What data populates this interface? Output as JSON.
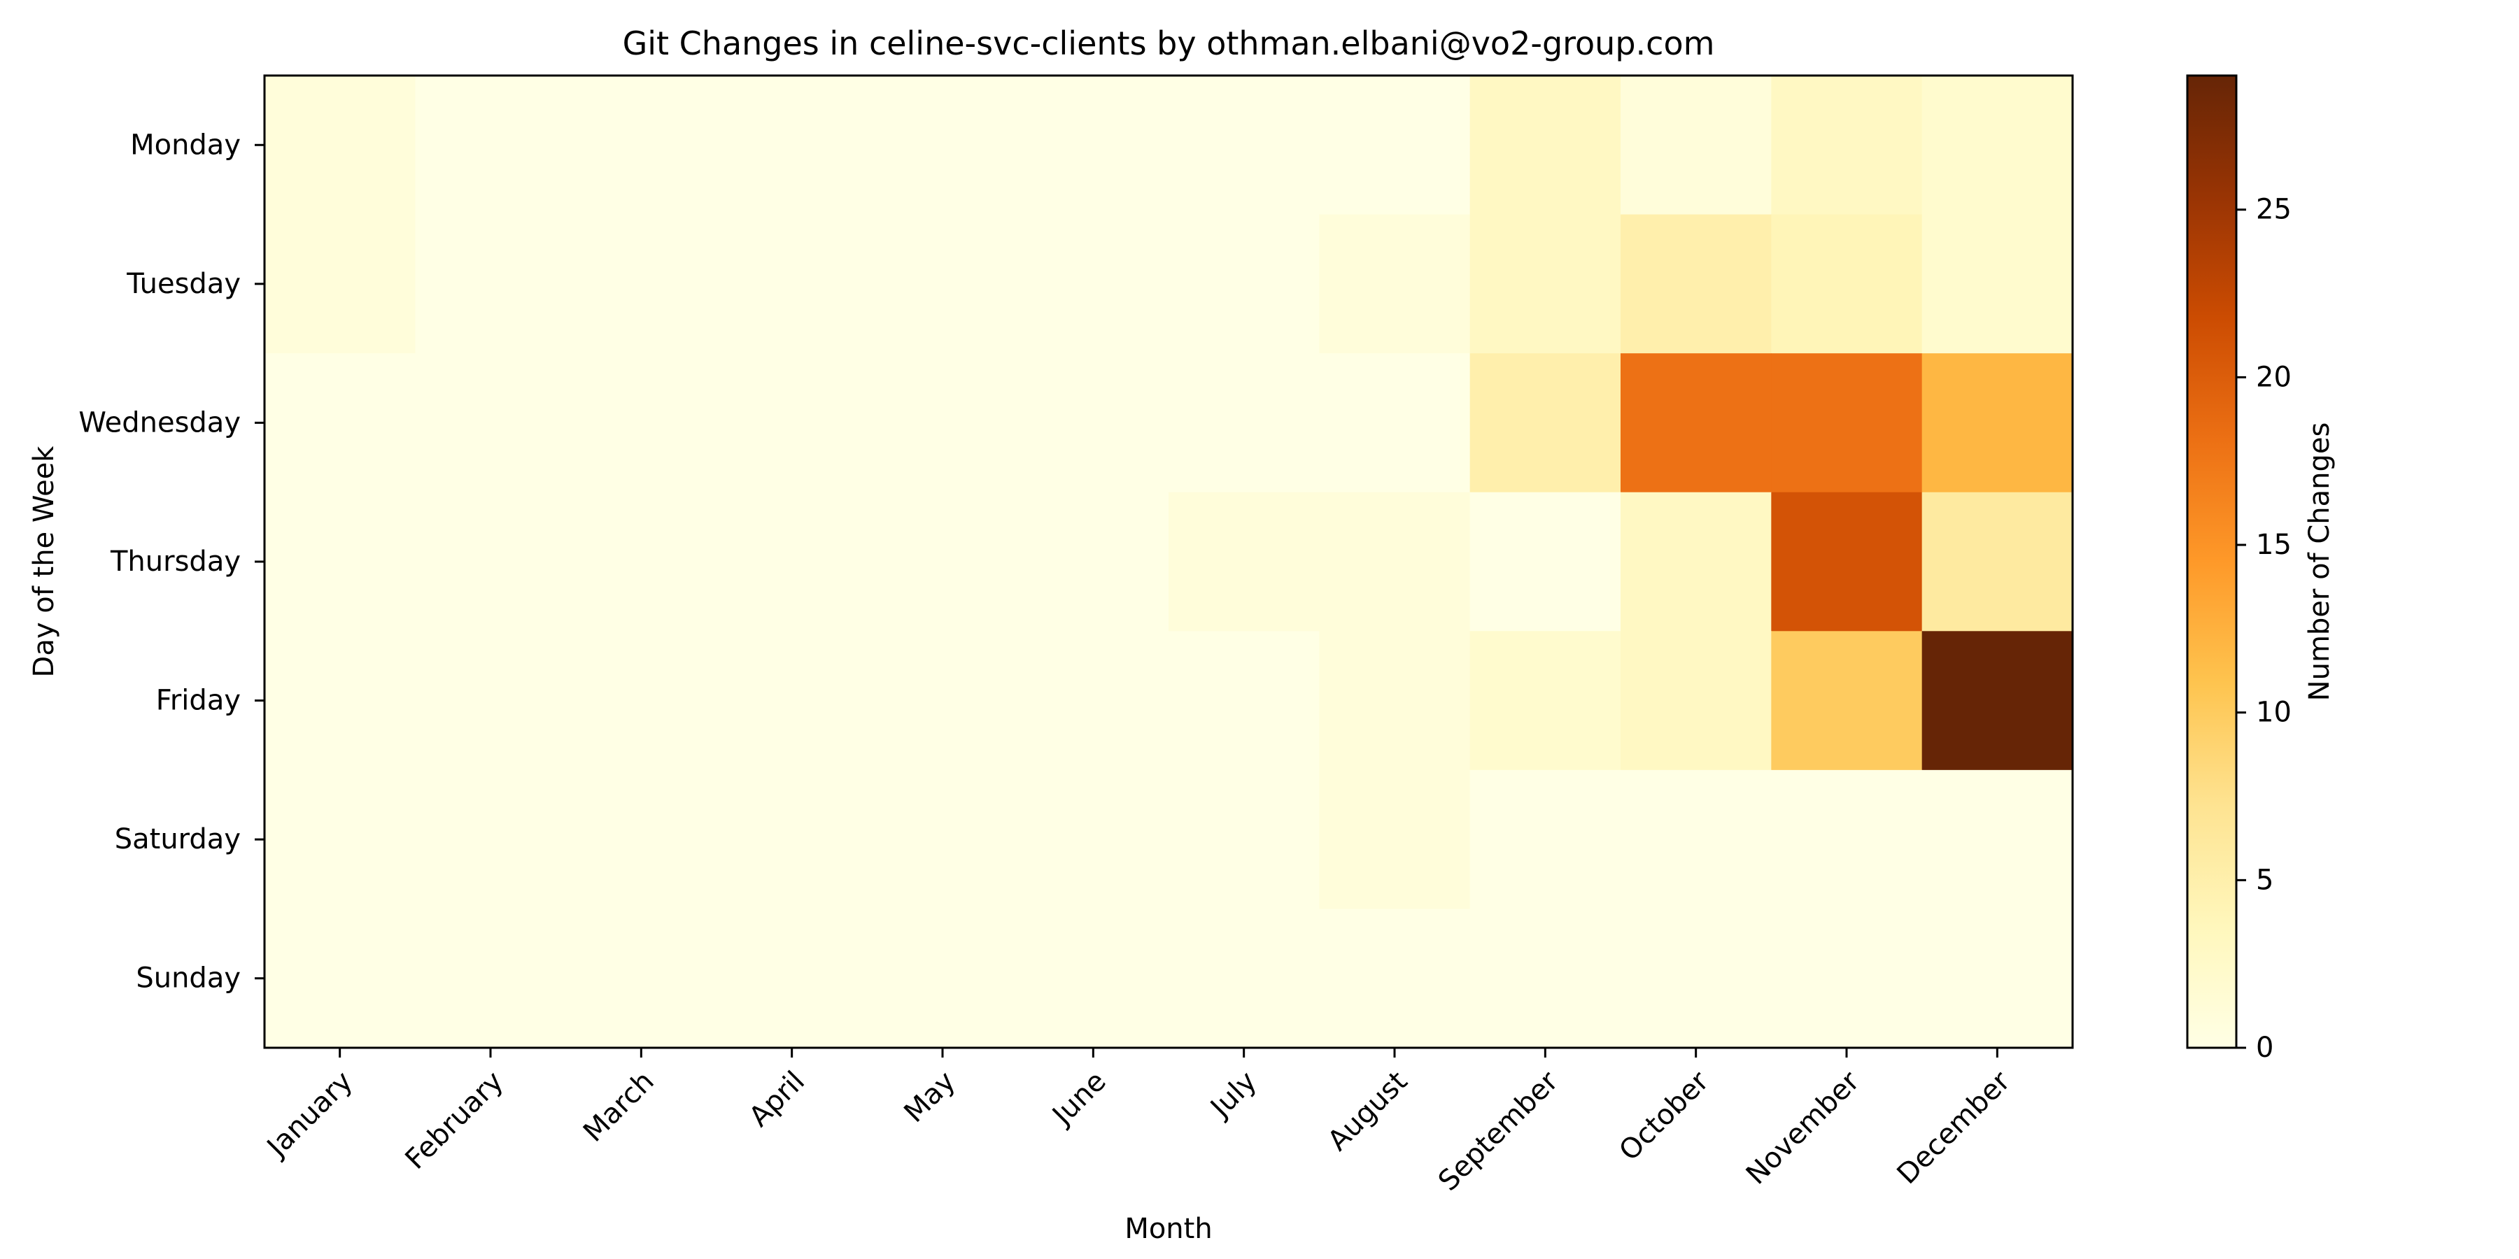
{
  "chart_data": {
    "type": "heatmap",
    "title": "Git Changes in celine-svc-clients by othman.elbani@vo2-group.com",
    "xlabel": "Month",
    "ylabel": "Day of the Week",
    "x_categories": [
      "January",
      "February",
      "March",
      "April",
      "May",
      "June",
      "July",
      "August",
      "September",
      "October",
      "November",
      "December"
    ],
    "y_categories": [
      "Monday",
      "Tuesday",
      "Wednesday",
      "Thursday",
      "Friday",
      "Saturday",
      "Sunday"
    ],
    "values": [
      [
        1,
        0,
        0,
        0,
        0,
        0,
        0,
        0,
        3,
        1,
        3,
        2
      ],
      [
        1,
        0,
        0,
        0,
        0,
        0,
        0,
        1,
        3,
        5,
        4,
        2
      ],
      [
        0,
        0,
        0,
        0,
        0,
        0,
        0,
        0,
        5,
        18,
        18,
        12
      ],
      [
        0,
        0,
        0,
        0,
        0,
        0,
        1,
        1,
        0,
        3,
        21,
        6
      ],
      [
        0,
        0,
        0,
        0,
        0,
        0,
        0,
        1,
        2,
        3,
        10,
        29
      ],
      [
        0,
        0,
        0,
        0,
        0,
        0,
        0,
        1,
        0,
        0,
        0,
        0
      ],
      [
        0,
        0,
        0,
        0,
        0,
        0,
        0,
        0,
        0,
        0,
        0,
        0
      ]
    ],
    "colormap": "YlOrBr",
    "colorbar": {
      "label": "Number of Changes",
      "range": [
        0,
        29
      ],
      "ticks": [
        0,
        5,
        10,
        15,
        20,
        25
      ]
    },
    "grid": false
  }
}
